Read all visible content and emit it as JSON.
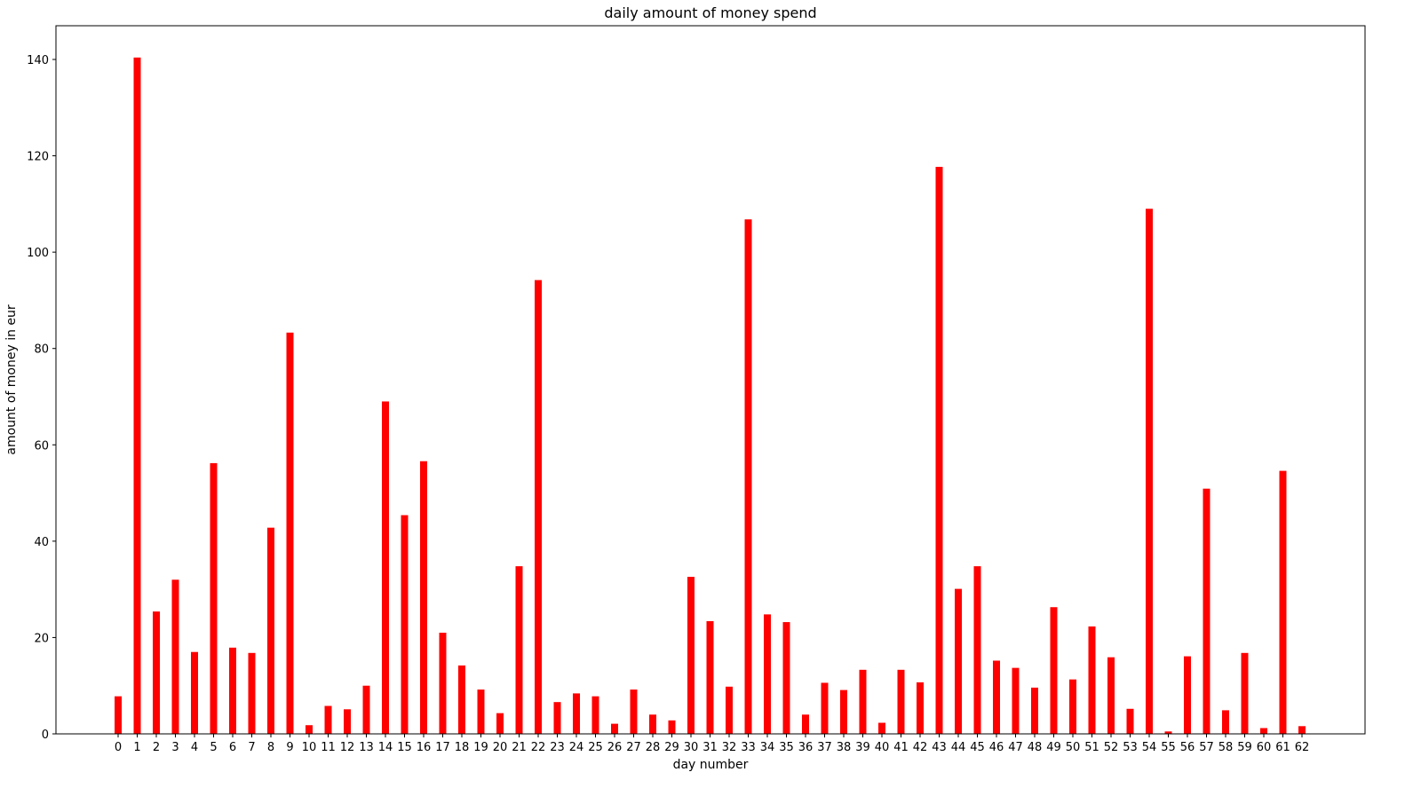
{
  "chart_data": {
    "type": "bar",
    "title": "daily amount of money spend",
    "xlabel": "day number",
    "ylabel": "amount of money in eur",
    "ylim": [
      0,
      147
    ],
    "yticks": [
      0,
      20,
      40,
      60,
      80,
      100,
      120,
      140
    ],
    "grid": false,
    "bar_color": "#ff0000",
    "categories": [
      "0",
      "1",
      "2",
      "3",
      "4",
      "5",
      "6",
      "7",
      "8",
      "9",
      "10",
      "11",
      "12",
      "13",
      "14",
      "15",
      "16",
      "17",
      "18",
      "19",
      "20",
      "21",
      "22",
      "23",
      "24",
      "25",
      "26",
      "27",
      "28",
      "29",
      "30",
      "31",
      "32",
      "33",
      "34",
      "35",
      "36",
      "37",
      "38",
      "39",
      "40",
      "41",
      "42",
      "43",
      "44",
      "45",
      "46",
      "47",
      "48",
      "49",
      "50",
      "51",
      "52",
      "53",
      "54",
      "55",
      "56",
      "57",
      "58",
      "59",
      "60",
      "61",
      "62"
    ],
    "values": [
      7.8,
      140.4,
      25.4,
      32.0,
      17.0,
      56.2,
      17.9,
      16.8,
      42.8,
      83.3,
      1.8,
      5.8,
      5.1,
      10.0,
      69.0,
      45.4,
      56.6,
      21.0,
      14.2,
      9.2,
      4.3,
      34.8,
      94.2,
      6.6,
      8.4,
      7.8,
      2.1,
      9.2,
      4.0,
      2.8,
      32.6,
      23.4,
      9.8,
      106.8,
      24.8,
      23.2,
      4.0,
      10.6,
      9.1,
      13.3,
      2.3,
      13.3,
      10.7,
      117.7,
      30.1,
      34.8,
      15.2,
      13.7,
      9.6,
      26.3,
      11.3,
      22.3,
      15.9,
      5.2,
      109.0,
      0.5,
      16.1,
      50.9,
      4.9,
      16.8,
      1.2,
      54.6,
      1.6
    ]
  }
}
